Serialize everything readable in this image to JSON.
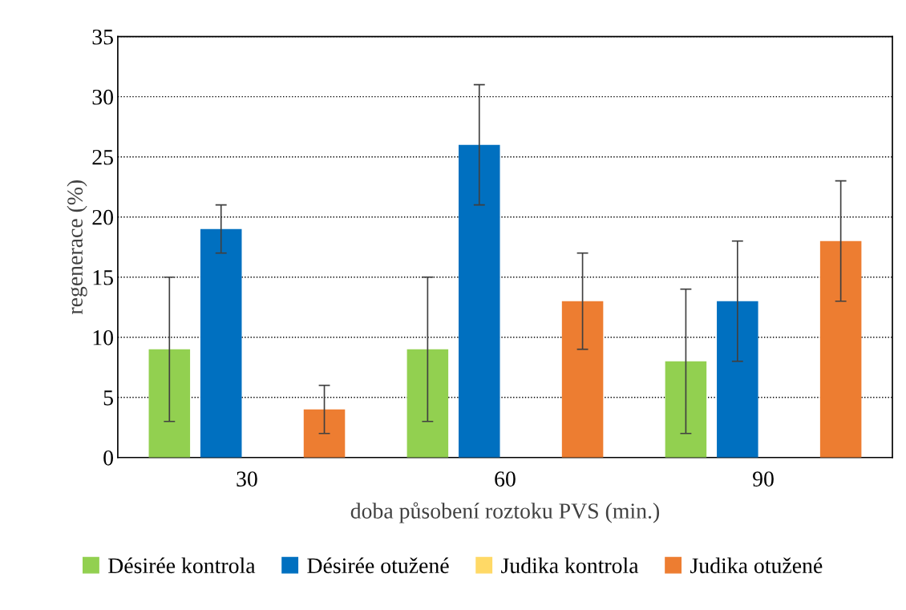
{
  "chart_data": {
    "type": "bar",
    "xlabel": "doba působení roztoku PVS (min.)",
    "ylabel": "regenerace (%)",
    "categories": [
      "30",
      "60",
      "90"
    ],
    "series": [
      {
        "name": "Désirée kontrola",
        "color": "#92d050",
        "values": [
          9,
          9,
          8
        ],
        "errors": [
          6,
          6,
          6
        ]
      },
      {
        "name": "Désirée otužené",
        "color": "#0070c0",
        "values": [
          19,
          26,
          13
        ],
        "errors": [
          2,
          5,
          5
        ]
      },
      {
        "name": "Judika kontrola",
        "color": "#ffd966",
        "values": [
          null,
          null,
          null
        ]
      },
      {
        "name": "Judika otužené",
        "color": "#ed7d31",
        "values": [
          4,
          13,
          18
        ],
        "errors": [
          2,
          4,
          5
        ]
      }
    ],
    "ylim": [
      0,
      35
    ],
    "yticks": [
      0,
      5,
      10,
      15,
      20,
      25,
      30,
      35
    ],
    "grid": "y",
    "legend": "bottom"
  }
}
